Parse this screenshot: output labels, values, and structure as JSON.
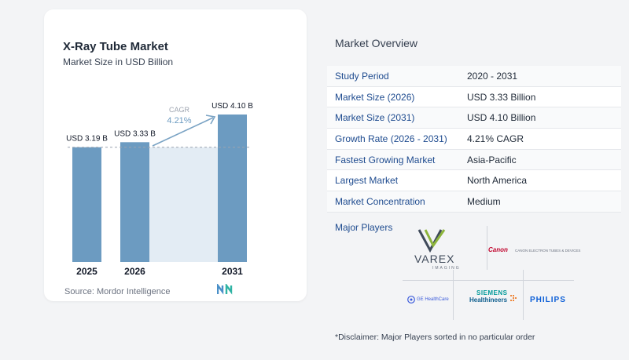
{
  "left_panel": {
    "title": "X-Ray Tube Market",
    "subtitle": "Market Size in USD Billion",
    "source": "Source: Mordor Intelligence",
    "cagr_label": "CAGR",
    "cagr_value": "4.21%"
  },
  "chart_data": {
    "type": "bar",
    "title": "X-Ray Tube Market",
    "subtitle": "Market Size in USD Billion",
    "categories": [
      "2025",
      "2026",
      "2031"
    ],
    "values": [
      3.19,
      3.33,
      4.1
    ],
    "data_labels": [
      "USD 3.19 B",
      "USD 3.33 B",
      "USD 4.10 B"
    ],
    "ylim": [
      0,
      4.1
    ],
    "colors": {
      "bar": "#6c9bc1",
      "shade": "#e3ecf4",
      "arrow": "#7aa3c4",
      "dashed": "#9ca3af"
    }
  },
  "overview": {
    "title": "Market Overview",
    "rows": [
      {
        "label": "Study Period",
        "value": "2020 - 2031"
      },
      {
        "label": "Market Size (2026)",
        "value": "USD 3.33 Billion"
      },
      {
        "label": "Market Size (2031)",
        "value": "USD 4.10 Billion"
      },
      {
        "label": "Growth Rate (2026 - 2031)",
        "value": "4.21% CAGR"
      },
      {
        "label": "Fastest Growing Market",
        "value": "Asia-Pacific"
      },
      {
        "label": "Largest Market",
        "value": "North America"
      },
      {
        "label": "Market Concentration",
        "value": "Medium"
      }
    ],
    "players_title": "Major Players",
    "players": {
      "varex": "VAREX",
      "varex_sub": "IMAGING",
      "canon": "Canon",
      "canon_sub": "CANON ELECTRON TUBES & DEVICES",
      "ge": "GE HealthCare",
      "siemens": "SIEMENS",
      "healthineers": "Healthineers",
      "philips": "PHILIPS"
    },
    "disclaimer": "*Disclaimer: Major Players sorted in no particular order"
  }
}
